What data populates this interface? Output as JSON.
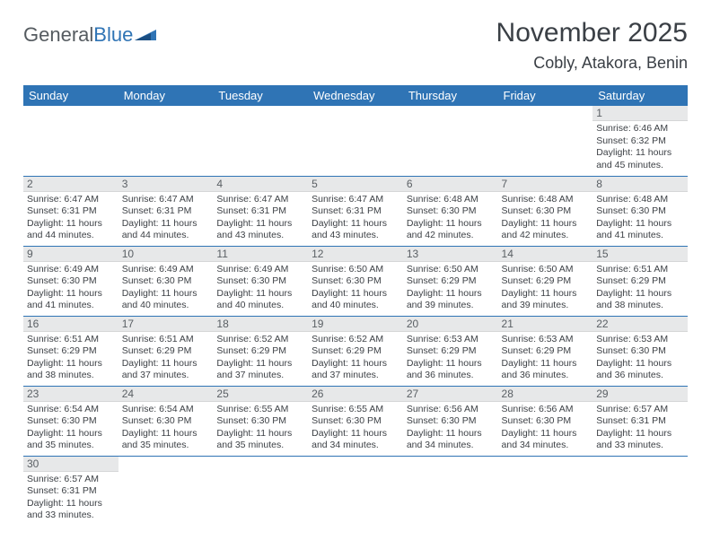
{
  "logo": {
    "text1": "General",
    "text2": "Blue"
  },
  "title": "November 2025",
  "subtitle": "Cobly, Atakora, Benin",
  "colors": {
    "header_bg": "#2f74b5",
    "header_fg": "#ffffff",
    "daynum_bg": "#e7e8e9",
    "border": "#2f74b5",
    "text": "#3d4146"
  },
  "columns": [
    "Sunday",
    "Monday",
    "Tuesday",
    "Wednesday",
    "Thursday",
    "Friday",
    "Saturday"
  ],
  "weeks": [
    [
      null,
      null,
      null,
      null,
      null,
      null,
      {
        "n": "1",
        "sunrise": "Sunrise: 6:46 AM",
        "sunset": "Sunset: 6:32 PM",
        "day": "Daylight: 11 hours and 45 minutes."
      }
    ],
    [
      {
        "n": "2",
        "sunrise": "Sunrise: 6:47 AM",
        "sunset": "Sunset: 6:31 PM",
        "day": "Daylight: 11 hours and 44 minutes."
      },
      {
        "n": "3",
        "sunrise": "Sunrise: 6:47 AM",
        "sunset": "Sunset: 6:31 PM",
        "day": "Daylight: 11 hours and 44 minutes."
      },
      {
        "n": "4",
        "sunrise": "Sunrise: 6:47 AM",
        "sunset": "Sunset: 6:31 PM",
        "day": "Daylight: 11 hours and 43 minutes."
      },
      {
        "n": "5",
        "sunrise": "Sunrise: 6:47 AM",
        "sunset": "Sunset: 6:31 PM",
        "day": "Daylight: 11 hours and 43 minutes."
      },
      {
        "n": "6",
        "sunrise": "Sunrise: 6:48 AM",
        "sunset": "Sunset: 6:30 PM",
        "day": "Daylight: 11 hours and 42 minutes."
      },
      {
        "n": "7",
        "sunrise": "Sunrise: 6:48 AM",
        "sunset": "Sunset: 6:30 PM",
        "day": "Daylight: 11 hours and 42 minutes."
      },
      {
        "n": "8",
        "sunrise": "Sunrise: 6:48 AM",
        "sunset": "Sunset: 6:30 PM",
        "day": "Daylight: 11 hours and 41 minutes."
      }
    ],
    [
      {
        "n": "9",
        "sunrise": "Sunrise: 6:49 AM",
        "sunset": "Sunset: 6:30 PM",
        "day": "Daylight: 11 hours and 41 minutes."
      },
      {
        "n": "10",
        "sunrise": "Sunrise: 6:49 AM",
        "sunset": "Sunset: 6:30 PM",
        "day": "Daylight: 11 hours and 40 minutes."
      },
      {
        "n": "11",
        "sunrise": "Sunrise: 6:49 AM",
        "sunset": "Sunset: 6:30 PM",
        "day": "Daylight: 11 hours and 40 minutes."
      },
      {
        "n": "12",
        "sunrise": "Sunrise: 6:50 AM",
        "sunset": "Sunset: 6:30 PM",
        "day": "Daylight: 11 hours and 40 minutes."
      },
      {
        "n": "13",
        "sunrise": "Sunrise: 6:50 AM",
        "sunset": "Sunset: 6:29 PM",
        "day": "Daylight: 11 hours and 39 minutes."
      },
      {
        "n": "14",
        "sunrise": "Sunrise: 6:50 AM",
        "sunset": "Sunset: 6:29 PM",
        "day": "Daylight: 11 hours and 39 minutes."
      },
      {
        "n": "15",
        "sunrise": "Sunrise: 6:51 AM",
        "sunset": "Sunset: 6:29 PM",
        "day": "Daylight: 11 hours and 38 minutes."
      }
    ],
    [
      {
        "n": "16",
        "sunrise": "Sunrise: 6:51 AM",
        "sunset": "Sunset: 6:29 PM",
        "day": "Daylight: 11 hours and 38 minutes."
      },
      {
        "n": "17",
        "sunrise": "Sunrise: 6:51 AM",
        "sunset": "Sunset: 6:29 PM",
        "day": "Daylight: 11 hours and 37 minutes."
      },
      {
        "n": "18",
        "sunrise": "Sunrise: 6:52 AM",
        "sunset": "Sunset: 6:29 PM",
        "day": "Daylight: 11 hours and 37 minutes."
      },
      {
        "n": "19",
        "sunrise": "Sunrise: 6:52 AM",
        "sunset": "Sunset: 6:29 PM",
        "day": "Daylight: 11 hours and 37 minutes."
      },
      {
        "n": "20",
        "sunrise": "Sunrise: 6:53 AM",
        "sunset": "Sunset: 6:29 PM",
        "day": "Daylight: 11 hours and 36 minutes."
      },
      {
        "n": "21",
        "sunrise": "Sunrise: 6:53 AM",
        "sunset": "Sunset: 6:29 PM",
        "day": "Daylight: 11 hours and 36 minutes."
      },
      {
        "n": "22",
        "sunrise": "Sunrise: 6:53 AM",
        "sunset": "Sunset: 6:30 PM",
        "day": "Daylight: 11 hours and 36 minutes."
      }
    ],
    [
      {
        "n": "23",
        "sunrise": "Sunrise: 6:54 AM",
        "sunset": "Sunset: 6:30 PM",
        "day": "Daylight: 11 hours and 35 minutes."
      },
      {
        "n": "24",
        "sunrise": "Sunrise: 6:54 AM",
        "sunset": "Sunset: 6:30 PM",
        "day": "Daylight: 11 hours and 35 minutes."
      },
      {
        "n": "25",
        "sunrise": "Sunrise: 6:55 AM",
        "sunset": "Sunset: 6:30 PM",
        "day": "Daylight: 11 hours and 35 minutes."
      },
      {
        "n": "26",
        "sunrise": "Sunrise: 6:55 AM",
        "sunset": "Sunset: 6:30 PM",
        "day": "Daylight: 11 hours and 34 minutes."
      },
      {
        "n": "27",
        "sunrise": "Sunrise: 6:56 AM",
        "sunset": "Sunset: 6:30 PM",
        "day": "Daylight: 11 hours and 34 minutes."
      },
      {
        "n": "28",
        "sunrise": "Sunrise: 6:56 AM",
        "sunset": "Sunset: 6:30 PM",
        "day": "Daylight: 11 hours and 34 minutes."
      },
      {
        "n": "29",
        "sunrise": "Sunrise: 6:57 AM",
        "sunset": "Sunset: 6:31 PM",
        "day": "Daylight: 11 hours and 33 minutes."
      }
    ],
    [
      {
        "n": "30",
        "sunrise": "Sunrise: 6:57 AM",
        "sunset": "Sunset: 6:31 PM",
        "day": "Daylight: 11 hours and 33 minutes."
      },
      null,
      null,
      null,
      null,
      null,
      null
    ]
  ]
}
